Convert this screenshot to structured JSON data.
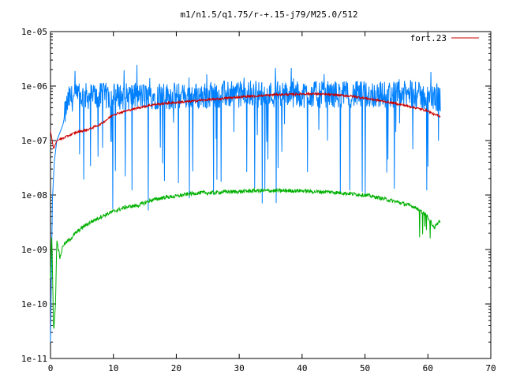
{
  "chart_data": {
    "type": "line",
    "title": "m1/n1.5/q1.75/r-+.15-j79/M25.0/512",
    "xlabel": "",
    "ylabel": "",
    "xlim": [
      0,
      70
    ],
    "ylim": [
      1e-11,
      1e-05
    ],
    "yscale": "log",
    "grid": false,
    "legend_placement": "top-right",
    "x_ticks": [
      0,
      10,
      20,
      30,
      40,
      50,
      60,
      70
    ],
    "x_tick_labels": [
      "0",
      "10",
      "20",
      "30",
      "40",
      "50",
      "60",
      "70"
    ],
    "y_ticks": [
      1e-11,
      1e-10,
      1e-09,
      1e-08,
      1e-07,
      1e-06,
      1e-05
    ],
    "y_tick_labels": [
      "1e-11",
      "1e-10",
      "1e-09",
      "1e-08",
      "1e-07",
      "1e-06",
      "1e-05"
    ],
    "series": [
      {
        "name": "",
        "color": "#0080ff",
        "x": [
          0,
          0.3,
          0.6,
          1,
          1.5,
          2,
          2.5,
          3,
          4,
          5,
          6,
          8,
          10,
          12,
          14,
          16,
          18,
          20,
          22,
          24,
          26,
          28,
          30,
          32,
          34,
          36,
          38,
          40,
          42,
          44,
          46,
          48,
          50,
          52,
          54,
          56,
          58,
          60,
          62
        ],
        "y": [
          2e-11,
          8e-09,
          4e-08,
          1e-07,
          1.4e-07,
          2e-07,
          4e-07,
          6e-07,
          6e-07,
          6.5e-07,
          6.5e-07,
          6.5e-07,
          6.5e-07,
          6.5e-07,
          6.5e-07,
          6.5e-07,
          6.5e-07,
          6.5e-07,
          6.5e-07,
          6.5e-07,
          7e-07,
          7e-07,
          7e-07,
          7e-07,
          7e-07,
          7e-07,
          7e-07,
          7e-07,
          7e-07,
          7e-07,
          7e-07,
          7e-07,
          7e-07,
          7e-07,
          7e-07,
          7e-07,
          7e-07,
          6e-07,
          6e-07
        ],
        "noise": "spiky"
      },
      {
        "name": "",
        "color": "#00b000",
        "x": [
          0,
          0.2,
          0.5,
          0.8,
          1,
          1.5,
          2,
          3,
          4,
          5,
          6,
          8,
          10,
          12,
          14,
          16,
          18,
          20,
          22,
          24,
          26,
          28,
          30,
          32,
          34,
          36,
          38,
          40,
          42,
          44,
          46,
          48,
          50,
          52,
          54,
          56,
          58,
          60,
          61,
          62
        ],
        "y": [
          3e-10,
          2e-09,
          3e-11,
          1e-10,
          1.5e-09,
          7e-10,
          1.2e-09,
          1.5e-09,
          2e-09,
          2.5e-09,
          3e-09,
          4e-09,
          5e-09,
          6e-09,
          6.5e-09,
          8e-09,
          9e-09,
          9.5e-09,
          1.05e-08,
          1.1e-08,
          1.1e-08,
          1.15e-08,
          1.15e-08,
          1.2e-08,
          1.2e-08,
          1.2e-08,
          1.2e-08,
          1.2e-08,
          1.15e-08,
          1.15e-08,
          1.1e-08,
          1.05e-08,
          1e-08,
          9e-09,
          8e-09,
          7e-09,
          6e-09,
          4e-09,
          2.5e-09,
          3.5e-09
        ],
        "noise": "small"
      },
      {
        "name": "fort.23",
        "color": "#cc0000",
        "x": [
          0,
          0.5,
          1,
          2,
          3,
          4,
          5,
          6,
          8,
          10,
          12,
          14,
          16,
          18,
          20,
          22,
          24,
          26,
          28,
          30,
          32,
          34,
          36,
          38,
          40,
          42,
          44,
          46,
          48,
          50,
          52,
          54,
          56,
          58,
          60,
          61,
          62
        ],
        "y": [
          1.5e-07,
          7e-08,
          1e-07,
          1.1e-07,
          1.25e-07,
          1.4e-07,
          1.5e-07,
          1.6e-07,
          2e-07,
          3e-07,
          3.5e-07,
          4e-07,
          4.5e-07,
          4.8e-07,
          5e-07,
          5.2e-07,
          5.5e-07,
          5.7e-07,
          6e-07,
          6.3e-07,
          6.5e-07,
          6.7e-07,
          7e-07,
          7e-07,
          7.2e-07,
          7.2e-07,
          7e-07,
          6.8e-07,
          6.5e-07,
          6e-07,
          5.5e-07,
          5e-07,
          4.5e-07,
          4e-07,
          3.5e-07,
          3e-07,
          2.8e-07
        ],
        "noise": "tiny"
      }
    ]
  }
}
